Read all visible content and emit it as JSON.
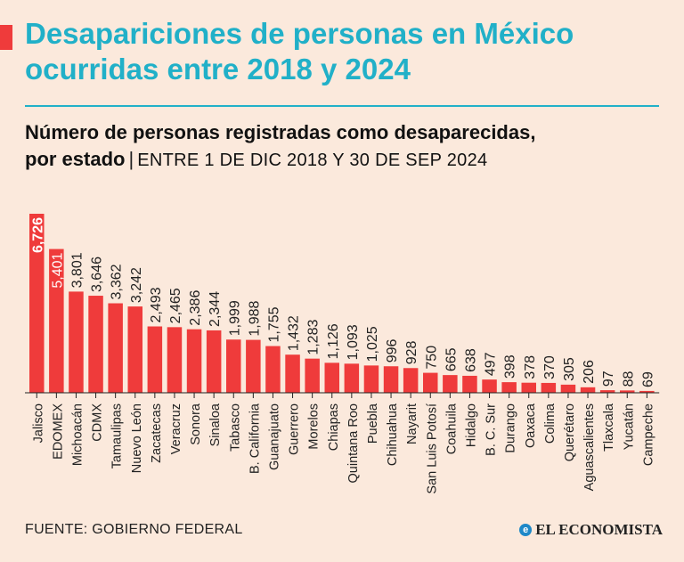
{
  "header": {
    "title_line1": "Desapariciones de personas en México",
    "title_line2": "ocurridas entre 2018 y 2024",
    "subtitle_line1": "Número de personas registradas como desaparecidas,",
    "subtitle_bold2": "por estado",
    "subtitle_sep": "|",
    "subtitle_period": "ENTRE 1 DE DIC 2018 Y 30 DE SEP 2024"
  },
  "footer": {
    "source": "FUENTE: GOBIERNO FEDERAL",
    "brand": "EL ECONOMISTA",
    "brand_icon": "e"
  },
  "colors": {
    "bar": "#ef3b3b",
    "title": "#21b0c8",
    "background": "#fbe9dc"
  },
  "chart_data": {
    "type": "bar",
    "categories": [
      "Jalisco",
      "EDOMEX",
      "Michoacán",
      "CDMX",
      "Tamaulipas",
      "Nuevo León",
      "Zacatecas",
      "Veracruz",
      "Sonora",
      "Sinaloa",
      "Tabasco",
      "B. California",
      "Guanajuato",
      "Guerrero",
      "Morelos",
      "Chiapas",
      "Quintana Roo",
      "Puebla",
      "Chihuahua",
      "Nayarit",
      "San Luis Potosí",
      "Coahuila",
      "Hidalgo",
      "B. C. Sur",
      "Durango",
      "Oaxaca",
      "Colima",
      "Querétaro",
      "Aguascalientes",
      "Tlaxcala",
      "Yucatán",
      "Campeche"
    ],
    "values": [
      6726,
      5401,
      3801,
      3646,
      3362,
      3242,
      2493,
      2465,
      2386,
      2344,
      1999,
      1988,
      1755,
      1432,
      1283,
      1126,
      1093,
      1025,
      996,
      928,
      750,
      665,
      638,
      497,
      398,
      378,
      370,
      305,
      206,
      97,
      88,
      69
    ],
    "labels": [
      "6,726",
      "5,401",
      "3,801",
      "3,646",
      "3,362",
      "3,242",
      "2,493",
      "2,465",
      "2,386",
      "2,344",
      "1,999",
      "1,988",
      "1,755",
      "1,432",
      "1,283",
      "1,126",
      "1,093",
      "1,025",
      "996",
      "928",
      "750",
      "665",
      "638",
      "497",
      "398",
      "378",
      "370",
      "305",
      "206",
      "97",
      "88",
      "69"
    ],
    "ylim": [
      0,
      6726
    ],
    "grid": false,
    "legend": "none"
  }
}
